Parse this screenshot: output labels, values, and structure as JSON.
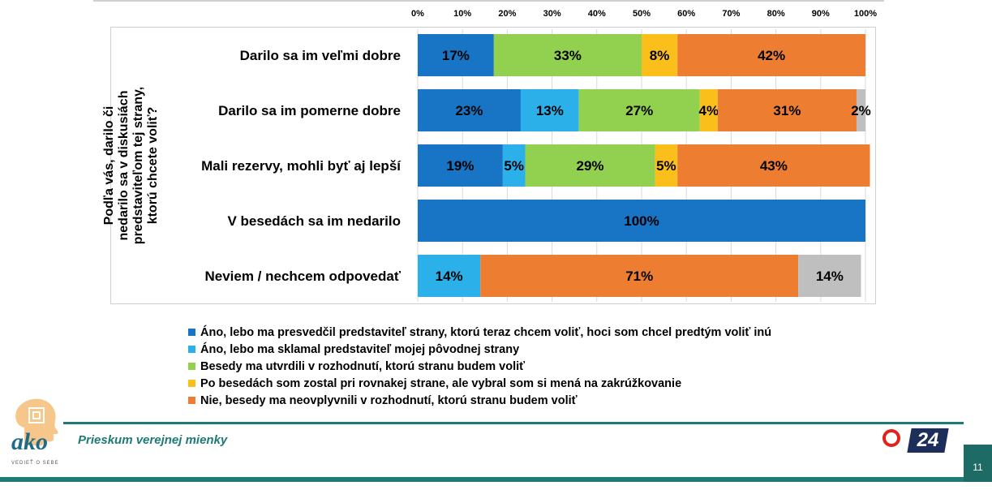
{
  "chart_data": {
    "type": "bar",
    "orientation": "horizontal",
    "stacked": true,
    "ylabel": "Podľa vás, darilo či nedarilo sa v diskusiách predstaviteľom tej strany, ktorú chcete voliť?",
    "xlabel": "",
    "xlim": [
      0,
      100
    ],
    "x_ticks": [
      "0%",
      "10%",
      "20%",
      "30%",
      "40%",
      "50%",
      "60%",
      "70%",
      "80%",
      "90%",
      "100%"
    ],
    "categories": [
      "Darilo sa im veľmi dobre",
      "Darilo sa im pomerne dobre",
      "Mali rezervy, mohli byť aj lepší",
      "V besedách sa im nedarilo",
      "Neviem / nechcem odpovedať"
    ],
    "series": [
      {
        "name": "Áno, lebo ma presvedčil predstaviteľ strany, ktorú teraz chcem voliť, hoci som chcel predtým voliť inú",
        "color": "#1874c4",
        "values": [
          17,
          23,
          19,
          100,
          0
        ]
      },
      {
        "name": "Áno, lebo ma sklamal predstaviteľ mojej pôvodnej strany",
        "color": "#2bb0ea",
        "values": [
          0,
          13,
          5,
          0,
          14
        ]
      },
      {
        "name": "Besedy ma utvrdili v rozhodnutí, ktorú stranu budem voliť",
        "color": "#92d050",
        "values": [
          33,
          27,
          29,
          0,
          0
        ]
      },
      {
        "name": "Po besedách som zostal pri rovnakej strane, ale vybral som si mená na zakrúžkovanie",
        "color": "#fbbf1c",
        "values": [
          8,
          4,
          5,
          0,
          0
        ]
      },
      {
        "name": "Nie, besedy ma neovplyvnili v rozhodnutí, ktorú stranu budem voliť",
        "color": "#ed7d31",
        "values": [
          42,
          31,
          43,
          0,
          71
        ]
      },
      {
        "name": "",
        "color": "#bfbfbf",
        "values": [
          0,
          2,
          0,
          0,
          14
        ]
      }
    ],
    "grid": true,
    "legend_position": "bottom"
  },
  "footer": {
    "subtitle": "Prieskum verejnej mienky",
    "page_number": "11",
    "logo_word": "ako",
    "logo_tagline": "VEDIEŤ O SEBE",
    "tv_logo_text": "24"
  }
}
